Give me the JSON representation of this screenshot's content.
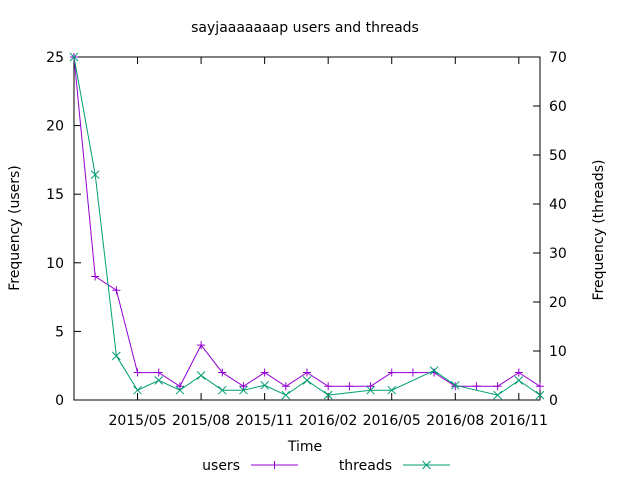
{
  "chart_data": {
    "type": "line",
    "title": "sayjaaaaaaap users and threads",
    "xlabel": "Time",
    "ylabel_left": "Frequency (users)",
    "ylabel_right": "Frequency (threads)",
    "ylim_left": [
      0,
      25
    ],
    "ylim_right": [
      0,
      70
    ],
    "yticks_left": [
      "0",
      "5",
      "10",
      "15",
      "20",
      "25"
    ],
    "yticks_right": [
      "0",
      "10",
      "20",
      "30",
      "40",
      "50",
      "60",
      "70"
    ],
    "xticks": [
      "2015/05",
      "2015/08",
      "2015/11",
      "2016/02",
      "2016/05",
      "2016/08",
      "2016/11"
    ],
    "xlim": [
      "2015-02",
      "2016-12"
    ],
    "legend_position": "bottom",
    "grid": false,
    "x": [
      "2015-02",
      "2015-03",
      "2015-04",
      "2015-05",
      "2015-06",
      "2015-07",
      "2015-08",
      "2015-09",
      "2015-10",
      "2015-11",
      "2015-12",
      "2016-01",
      "2016-02",
      "2016-03",
      "2016-04",
      "2016-05",
      "2016-06",
      "2016-07",
      "2016-08",
      "2016-09",
      "2016-10",
      "2016-11",
      "2016-12"
    ],
    "series": [
      {
        "name": "users",
        "axis": "left",
        "color": "#9400d3",
        "marker": "plus",
        "values": [
          25,
          9,
          8,
          2,
          2,
          1,
          4,
          2,
          1,
          2,
          1,
          2,
          1,
          1,
          1,
          2,
          2,
          2,
          1,
          1,
          1,
          2,
          1
        ]
      },
      {
        "name": "threads",
        "axis": "right",
        "color": "#009e73",
        "marker": "cross",
        "values": [
          70,
          46,
          9,
          2,
          4,
          2,
          5,
          2,
          2,
          3,
          1,
          4,
          1,
          null,
          2,
          2,
          null,
          6,
          3,
          null,
          1,
          4,
          1
        ]
      }
    ]
  }
}
